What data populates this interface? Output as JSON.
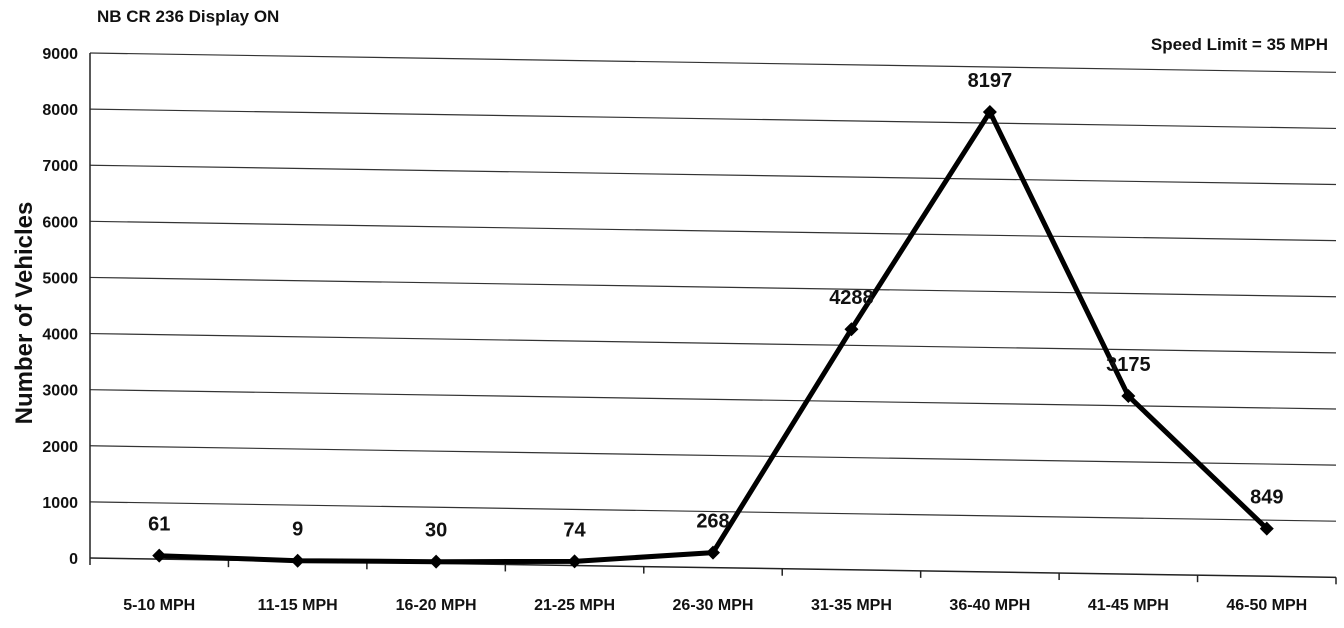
{
  "chart_data": {
    "type": "line",
    "title": "NB CR 236 Display ON",
    "annotation": "Speed Limit = 35 MPH",
    "xlabel": "",
    "ylabel": "Number of Vehicles",
    "categories": [
      "5-10 MPH",
      "11-15 MPH",
      "16-20 MPH",
      "21-25 MPH",
      "26-30 MPH",
      "31-35 MPH",
      "36-40 MPH",
      "41-45 MPH",
      "46-50 MPH"
    ],
    "series": [
      {
        "values": [
          61,
          9,
          30,
          74,
          268,
          4288,
          8197,
          3175,
          849
        ],
        "data_labels": [
          "61",
          "9",
          "30",
          "74",
          "268",
          "4288",
          "8197",
          "3175",
          "849"
        ]
      }
    ],
    "ylim": [
      0,
      9000
    ],
    "yticks": [
      0,
      1000,
      2000,
      3000,
      4000,
      5000,
      6000,
      7000,
      8000,
      9000
    ],
    "ytick_labels": [
      "0",
      "1000",
      "2000",
      "3000",
      "4000",
      "5000",
      "6000",
      "7000",
      "8000",
      "9000"
    ],
    "grid": true,
    "legend": "none",
    "colors": {
      "line": "#000000",
      "grid": "#333333",
      "text": "#111111",
      "background": "#ffffff"
    }
  }
}
